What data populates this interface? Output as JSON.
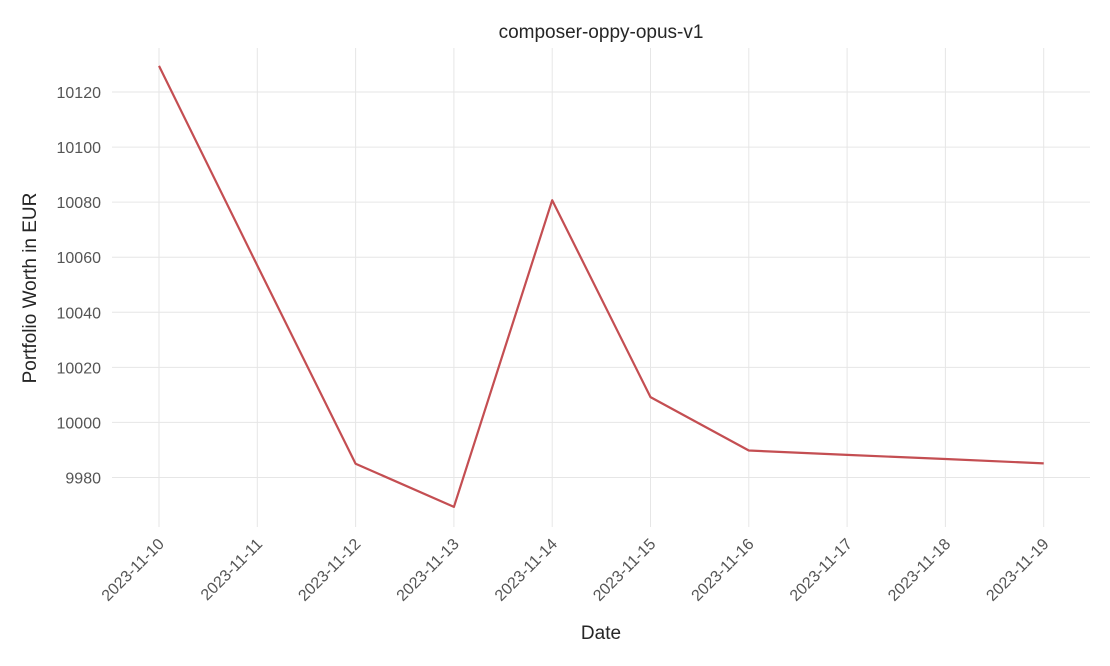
{
  "chart_data": {
    "type": "line",
    "title": "composer-oppy-opus-v1",
    "xlabel": "Date",
    "ylabel": "Portfolio Worth in EUR",
    "x": [
      "2023-11-10",
      "2023-11-11",
      "2023-11-12",
      "2023-11-13",
      "2023-11-14",
      "2023-11-15",
      "2023-11-16",
      "2023-11-17",
      "2023-11-18",
      "2023-11-19"
    ],
    "series": [
      {
        "values": [
          10129.5,
          10057,
          9985,
          9969.3,
          10080.7,
          10009.2,
          9989.8,
          9988.2,
          9986.7,
          9985.1
        ],
        "color": "#c44e52"
      }
    ],
    "yticks": [
      9980,
      10000,
      10020,
      10040,
      10060,
      10080,
      10100,
      10120
    ],
    "ylim": [
      9962,
      10136
    ],
    "grid": true,
    "xtick_rotation": -45
  }
}
